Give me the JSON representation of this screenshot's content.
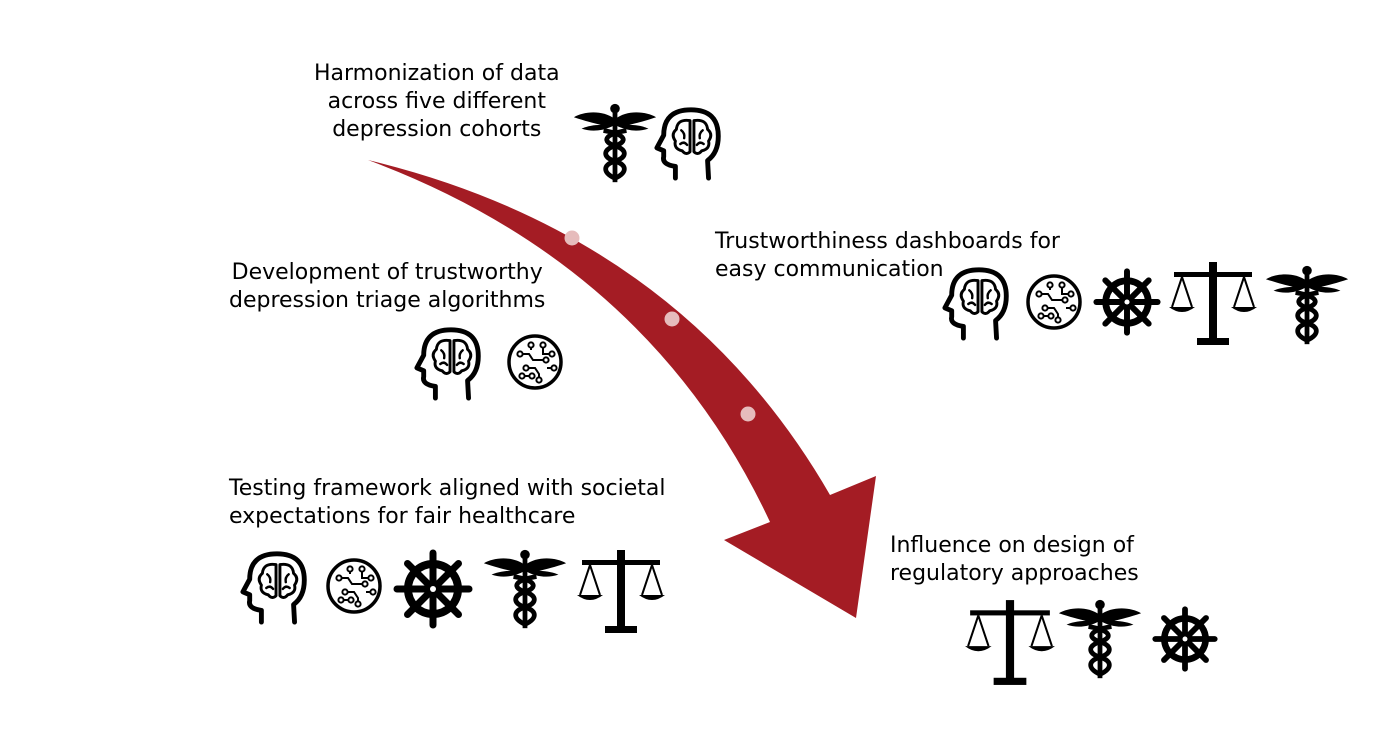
{
  "labels": {
    "harmonization": [
      "Harmonization of data",
      "across five different",
      "depression cohorts"
    ],
    "development": [
      "Development of trustworthy",
      "depression triage algorithms"
    ],
    "dashboards": [
      "Trustworthiness dashboards for",
      "easy communication"
    ],
    "testing": [
      "Testing framework aligned with societal",
      "expectations for fair healthcare"
    ],
    "influence": [
      "Influence on design of",
      "regulatory approaches"
    ]
  },
  "colors": {
    "arrow": "#a41c24",
    "dots": "#e6bcbc",
    "icons": "#000000"
  },
  "icon_groups": {
    "harmonization": [
      "caduceus-icon",
      "head-brain-icon"
    ],
    "development": [
      "head-brain-icon",
      "circuit-icon"
    ],
    "dashboards": [
      "head-brain-icon",
      "circuit-icon",
      "ship-wheel-icon",
      "scales-icon",
      "caduceus-icon"
    ],
    "testing": [
      "head-brain-icon",
      "circuit-icon",
      "ship-wheel-icon",
      "caduceus-icon",
      "scales-icon"
    ],
    "influence": [
      "scales-icon",
      "caduceus-icon",
      "ship-wheel-icon"
    ]
  }
}
